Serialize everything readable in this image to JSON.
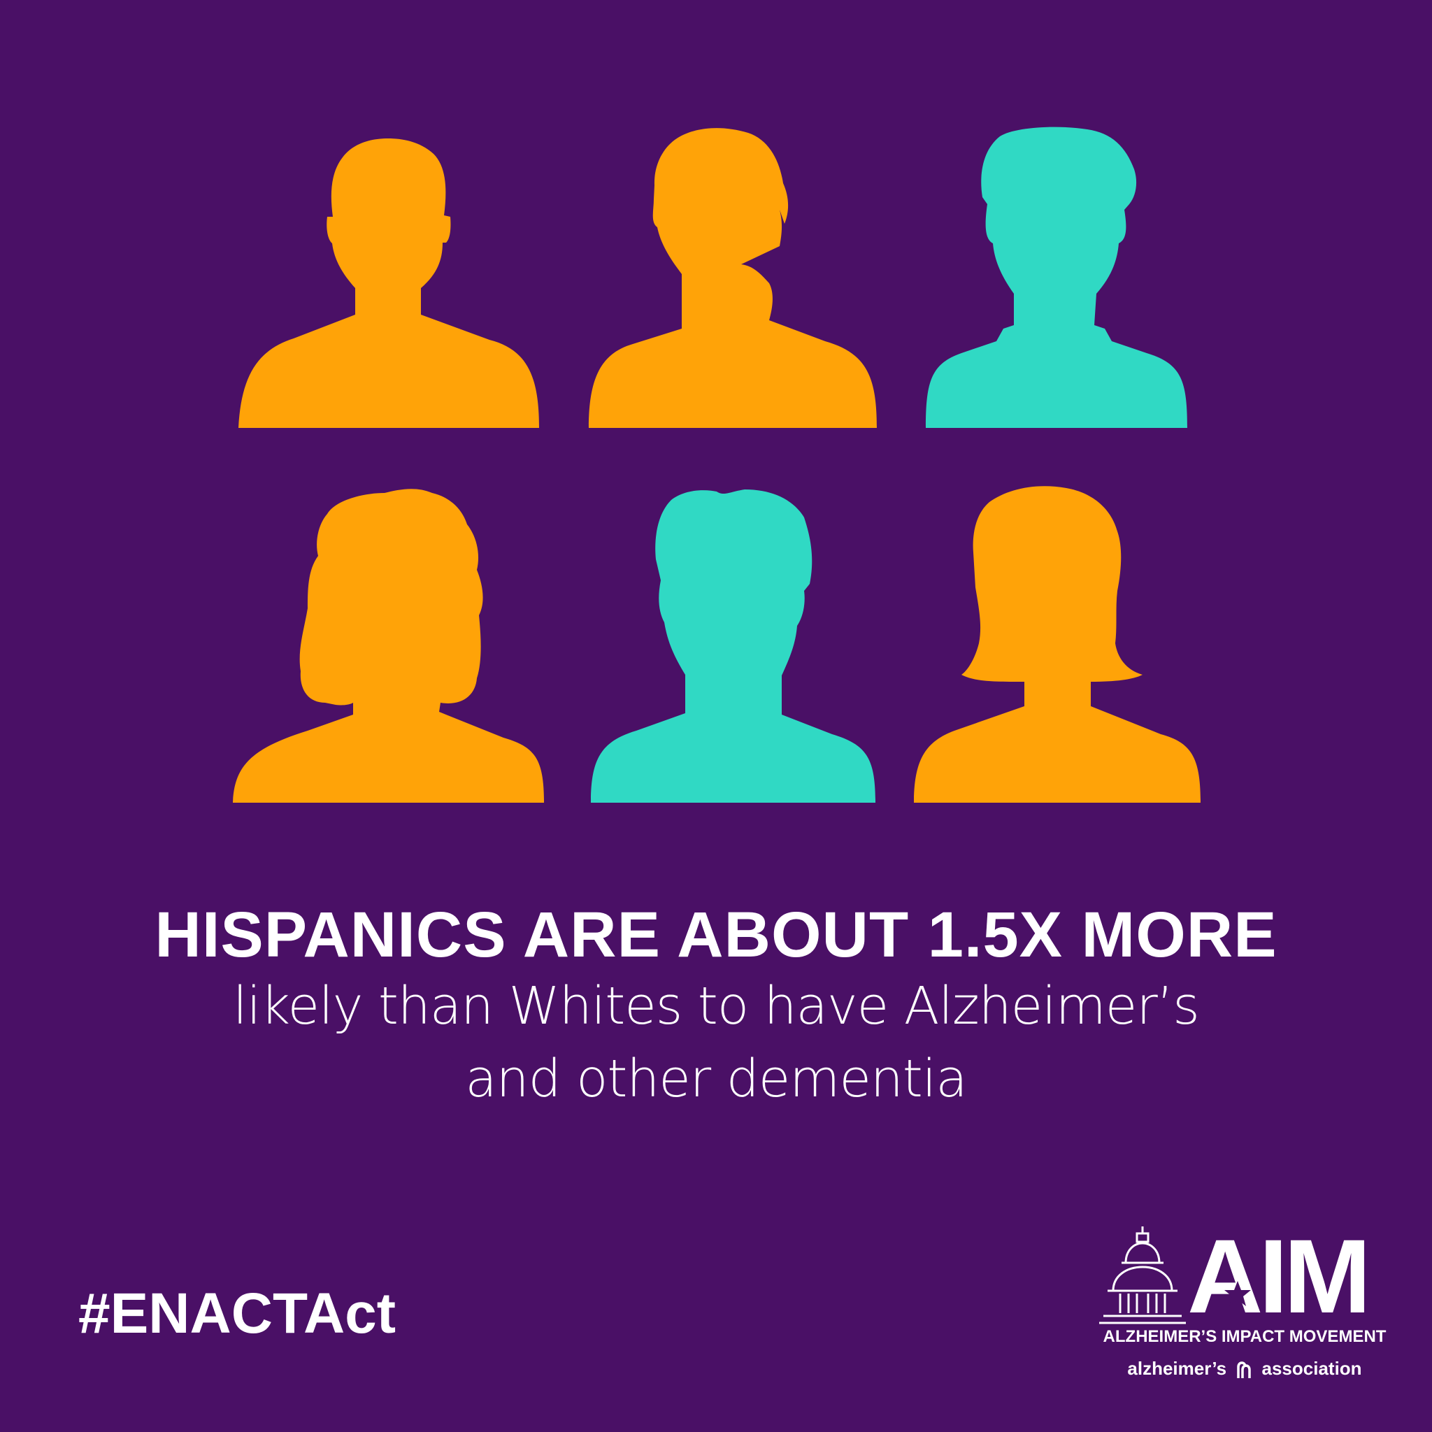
{
  "colors": {
    "background": "#4a1066",
    "orange": "#ffa308",
    "teal": "#30d9c4",
    "text": "#ffffff"
  },
  "people": [
    {
      "style": "short-hair-male",
      "color": "#ffa308"
    },
    {
      "style": "wavy-hair-ponytail",
      "color": "#ffa308"
    },
    {
      "style": "rounded-hair-male",
      "color": "#30d9c4"
    },
    {
      "style": "curly-long-hair",
      "color": "#ffa308"
    },
    {
      "style": "voluminous-hair-male",
      "color": "#30d9c4"
    },
    {
      "style": "bob-hair-female",
      "color": "#ffa308"
    }
  ],
  "headline": "HISPANICS ARE ABOUT 1.5X MORE",
  "subline": {
    "line1": "likely than Whites to have Alzheimer’s",
    "line2": "and other dementia"
  },
  "hashtag": "#ENACTAct",
  "logo": {
    "aim": "AIM",
    "tagline": "ALZHEIMER’S IMPACT MOVEMENT",
    "assoc_left": "alzheimer’s",
    "assoc_right": "association",
    "icons": [
      "capitol-dome-icon",
      "star-icon",
      "alzheimers-association-mark-icon"
    ]
  }
}
